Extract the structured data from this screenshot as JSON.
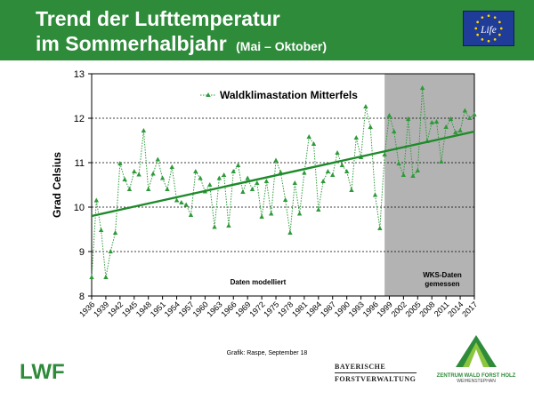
{
  "header": {
    "title_line1": "Trend der Lufttemperatur",
    "title_line2": "im Sommerhalbjahr",
    "subtitle": "(Mai – Oktober)",
    "bg_color": "#2e8b3a",
    "eu_logo_text": "Life"
  },
  "chart_data": {
    "type": "line",
    "ylabel": "Grad Celsius",
    "ylim": [
      8,
      13
    ],
    "xlim": [
      1936,
      2017
    ],
    "yticks": [
      8,
      9,
      10,
      11,
      12,
      13
    ],
    "xticks": [
      1936,
      1939,
      1942,
      1945,
      1948,
      1951,
      1954,
      1957,
      1960,
      1963,
      1966,
      1969,
      1972,
      1975,
      1978,
      1981,
      1984,
      1987,
      1990,
      1993,
      1996,
      1999,
      2002,
      2005,
      2008,
      2011,
      2014,
      2017
    ],
    "grid": "horizontal dashed",
    "legend": "top-left",
    "series": [
      {
        "name": "Waldklimastation Mitterfels",
        "color": "#2e9a3a",
        "style": "dotted with triangle markers",
        "x": [
          1936,
          1937,
          1938,
          1939,
          1940,
          1941,
          1942,
          1943,
          1944,
          1945,
          1946,
          1947,
          1948,
          1949,
          1950,
          1951,
          1952,
          1953,
          1954,
          1955,
          1956,
          1957,
          1958,
          1959,
          1960,
          1961,
          1962,
          1963,
          1964,
          1965,
          1966,
          1967,
          1968,
          1969,
          1970,
          1971,
          1972,
          1973,
          1974,
          1975,
          1976,
          1977,
          1978,
          1979,
          1980,
          1981,
          1982,
          1983,
          1984,
          1985,
          1986,
          1987,
          1988,
          1989,
          1990,
          1991,
          1992,
          1993,
          1994,
          1995,
          1996,
          1997,
          1998,
          1999,
          2000,
          2001,
          2002,
          2003,
          2004,
          2005,
          2006,
          2007,
          2008,
          2009,
          2010,
          2011,
          2012,
          2013,
          2014,
          2015,
          2016,
          2017
        ],
        "values": [
          8.42,
          10.15,
          9.48,
          8.42,
          9.0,
          9.42,
          10.98,
          10.62,
          10.4,
          10.8,
          10.73,
          11.72,
          10.4,
          10.75,
          11.07,
          10.65,
          10.4,
          10.9,
          10.15,
          10.1,
          10.05,
          9.82,
          10.8,
          10.65,
          10.35,
          10.5,
          9.55,
          10.65,
          10.72,
          9.58,
          10.8,
          10.94,
          10.34,
          10.65,
          10.4,
          10.54,
          9.78,
          10.58,
          9.85,
          11.05,
          10.78,
          10.16,
          9.42,
          10.54,
          9.85,
          10.77,
          11.58,
          11.42,
          9.94,
          10.58,
          10.8,
          10.72,
          11.22,
          10.94,
          10.8,
          10.38,
          11.56,
          11.12,
          12.26,
          11.8,
          10.27,
          9.52,
          11.18,
          12.06,
          11.7,
          10.98,
          10.72,
          11.98,
          10.7,
          10.82,
          12.68,
          11.48,
          11.9,
          11.92,
          11.02,
          11.8,
          11.98,
          11.68,
          11.72,
          12.17,
          12.0,
          12.08
        ]
      }
    ],
    "trend": {
      "color": "#1e8a2a",
      "x": [
        1936,
        2017
      ],
      "values": [
        9.8,
        11.7
      ]
    },
    "shaded_region": {
      "x_start": 1998,
      "x_end": 2017,
      "color": "#b3b3b3"
    },
    "annotations": {
      "modelled": "Daten modelliert",
      "measured_line1": "WKS-Daten",
      "measured_line2": "gemessen"
    }
  },
  "footer": {
    "credit": "Grafik: Raspe, September 18",
    "lwf_logo": "LWF",
    "bay_line1": "BAYERISCHE",
    "bay_line2": "FORSTVERWALTUNG",
    "zwfh_line1": "ZENTRUM WALD FORST HOLZ",
    "zwfh_line2": "WEIHENSTEPHAN",
    "lwf_color": "#2e8b3a"
  }
}
